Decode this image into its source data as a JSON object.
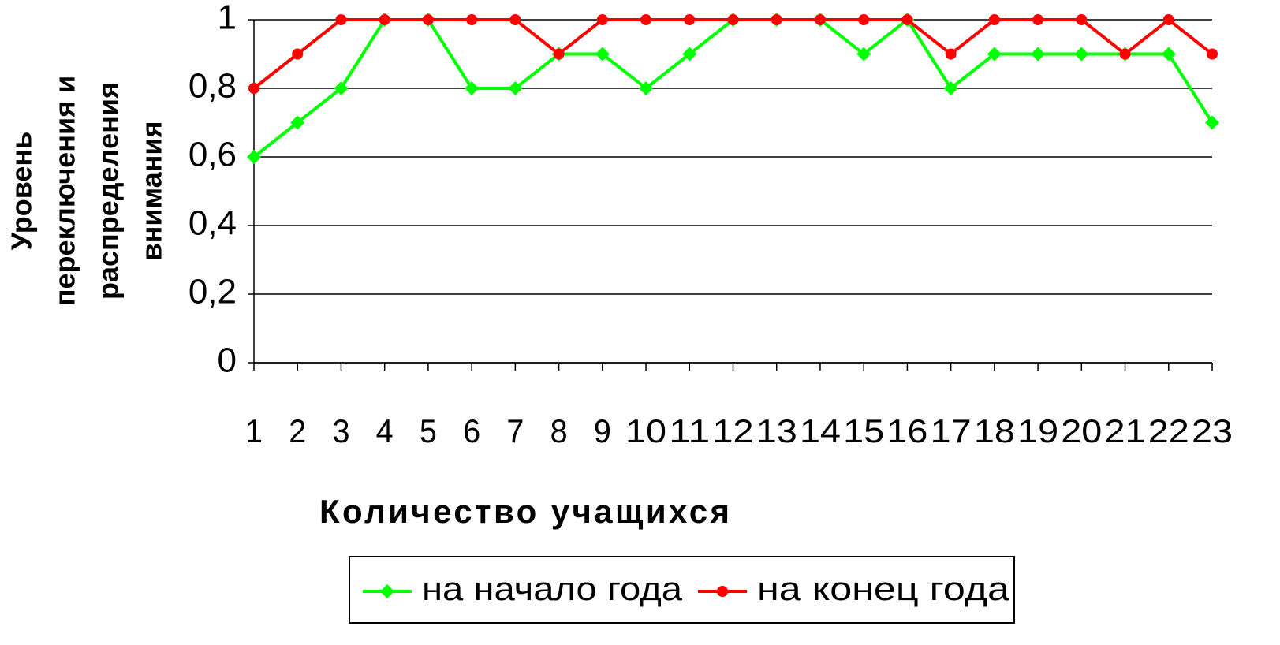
{
  "chart_data": {
    "type": "line",
    "ylabel": [
      "Уровень",
      "переключения и",
      "распределения",
      "внимания"
    ],
    "xlabel": "Количество учащихся",
    "categories": [
      "1",
      "2",
      "3",
      "4",
      "5",
      "6",
      "7",
      "8",
      "9",
      "10",
      "11",
      "12",
      "13",
      "14",
      "15",
      "16",
      "17",
      "18",
      "19",
      "20",
      "21",
      "22",
      "23"
    ],
    "series": [
      {
        "name": "на начало года",
        "color": "#00ff00",
        "marker": "diamond",
        "values": [
          0.6,
          0.7,
          0.8,
          1,
          1,
          0.8,
          0.8,
          0.9,
          0.9,
          0.8,
          0.9,
          1,
          1,
          1,
          0.9,
          1,
          0.8,
          0.9,
          0.9,
          0.9,
          0.9,
          0.9,
          0.7
        ]
      },
      {
        "name": "на конец года",
        "color": "#ff0000",
        "marker": "circle",
        "values": [
          0.8,
          0.9,
          1,
          1,
          1,
          1,
          1,
          0.9,
          1,
          1,
          1,
          1,
          1,
          1,
          1,
          1,
          0.9,
          1,
          1,
          1,
          0.9,
          1,
          0.9
        ]
      }
    ],
    "ylim": [
      0,
      1
    ],
    "yticks": [
      0,
      {
        "value": 0.2,
        "label": "0,2"
      },
      {
        "value": 0.4,
        "label": "0,4"
      },
      {
        "value": 0.6,
        "label": "0,6"
      },
      {
        "value": 0.8,
        "label": "0,8"
      },
      1
    ],
    "grid": true,
    "legend": "bottom"
  }
}
